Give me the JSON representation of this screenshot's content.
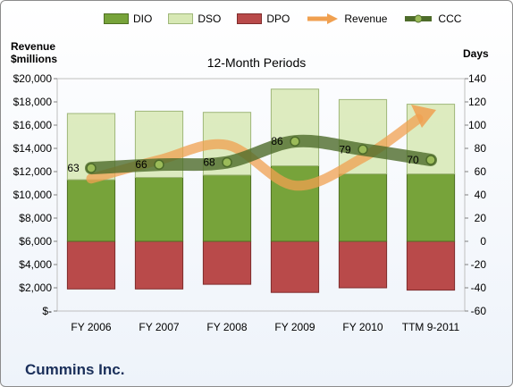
{
  "chart_data": {
    "type": "bar",
    "title": "12-Month Periods",
    "ylabel_left": "Revenue $millions",
    "ylabel_right": "Days",
    "company": "Cummins Inc.",
    "categories": [
      "FY 2006",
      "FY 2007",
      "FY 2008",
      "FY 2009",
      "FY 2010",
      "TTM 9-2011"
    ],
    "y_left": {
      "min": 0,
      "max": 20000,
      "ticks": [
        "$-",
        "$2,000",
        "$4,000",
        "$6,000",
        "$8,000",
        "$10,000",
        "$12,000",
        "$14,000",
        "$16,000",
        "$18,000",
        "$20,000"
      ]
    },
    "y_right": {
      "min": -60,
      "max": 140,
      "ticks": [
        "-60",
        "-40",
        "-20",
        "0",
        "20",
        "40",
        "60",
        "80",
        "100",
        "120",
        "140"
      ]
    },
    "series": [
      {
        "name": "DIO",
        "type": "stacked-bar",
        "axis": "right",
        "values": [
          53,
          55,
          57,
          65,
          58,
          58
        ],
        "color": "#77a33a"
      },
      {
        "name": "DSO",
        "type": "stacked-bar",
        "axis": "right",
        "values": [
          57,
          57,
          54,
          66,
          64,
          60
        ],
        "color": "#d7e8b4"
      },
      {
        "name": "DPO",
        "type": "negative-bar",
        "axis": "right",
        "values": [
          -41,
          -41,
          -37,
          -44,
          -40,
          -42
        ],
        "color": "#b94a4a"
      },
      {
        "name": "Revenue",
        "type": "line",
        "axis": "left",
        "values": [
          11400,
          13000,
          14300,
          10800,
          13200,
          17000
        ],
        "color": "#f0a050"
      },
      {
        "name": "CCC",
        "type": "line",
        "axis": "right",
        "values": [
          63,
          66,
          68,
          86,
          79,
          70
        ],
        "color": "#4d6b2a"
      }
    ],
    "ccc_labels": [
      "63",
      "66",
      "68",
      "86",
      "79",
      "70"
    ],
    "legend_position": "top",
    "grid": false
  }
}
